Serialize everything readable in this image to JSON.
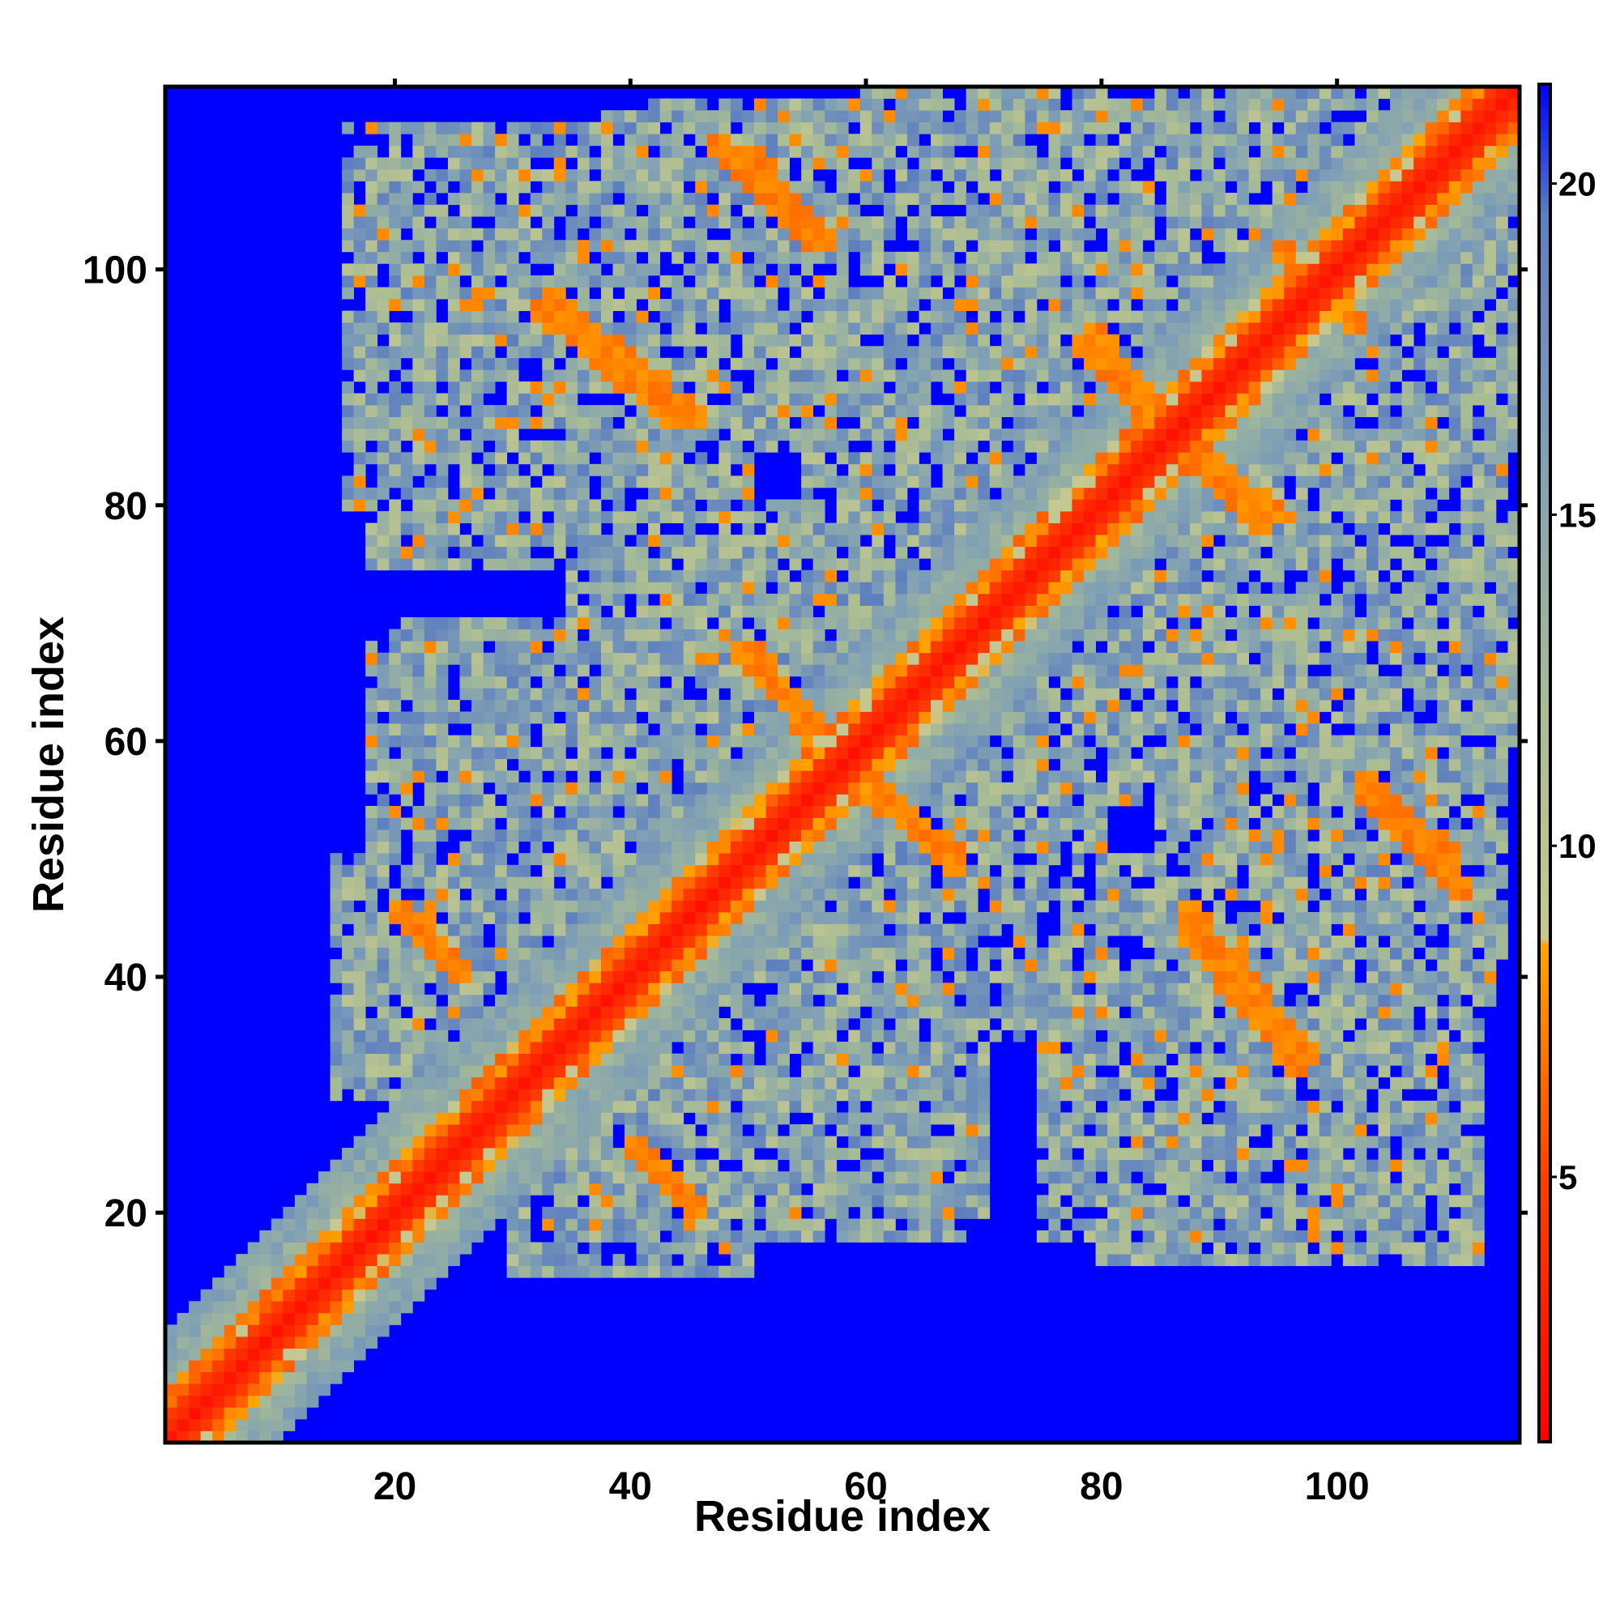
{
  "chart_data": {
    "type": "heatmap",
    "title": "",
    "xlabel": "Residue index",
    "ylabel": "Residue index",
    "n_residues": 115,
    "xlim": [
      0.5,
      115.5
    ],
    "ylim": [
      0.5,
      115.5
    ],
    "xticks": [
      20,
      40,
      60,
      80,
      100
    ],
    "yticks": [
      20,
      40,
      60,
      80,
      100
    ],
    "grid": false,
    "legend": "none",
    "value_description": "pairwise residue distance (colour scale)",
    "colorbar": {
      "range": [
        1,
        21.5
      ],
      "ticks": [
        5,
        10,
        15,
        20
      ],
      "placement": "right",
      "stops": [
        {
          "value": 1,
          "color": "#ff0000"
        },
        {
          "value": 5,
          "color": "#ff4000"
        },
        {
          "value": 8.5,
          "color": "#ffa500"
        },
        {
          "value": 8.6,
          "color": "#c8c890"
        },
        {
          "value": 12,
          "color": "#a8bc94"
        },
        {
          "value": 16,
          "color": "#7f9fb5"
        },
        {
          "value": 19.5,
          "color": "#5e7fbe"
        },
        {
          "value": 20.5,
          "color": "#2a3fe0"
        },
        {
          "value": 21.5,
          "color": "#0000ff"
        }
      ]
    },
    "background_color": "#0000ff",
    "diagonal_band": {
      "width": 2,
      "value": 2
    },
    "anti_diagonal_bands": [
      {
        "x": [
          20,
          26
        ],
        "y": [
          46,
          40
        ],
        "value": 6.5
      },
      {
        "x": [
          40,
          46
        ],
        "y": [
          26,
          20
        ],
        "value": 6.5
      },
      {
        "x": [
          32,
          44
        ],
        "y": [
          97,
          87
        ],
        "value": 6.5
      },
      {
        "x": [
          47,
          56
        ],
        "y": [
          111,
          102
        ],
        "value": 6.5
      },
      {
        "x": [
          50,
          57
        ],
        "y": [
          68,
          60
        ],
        "value": 6.5
      },
      {
        "x": [
          60,
          68
        ],
        "y": [
          56,
          49
        ],
        "value": 6.5
      },
      {
        "x": [
          79,
          86
        ],
        "y": [
          95,
          87
        ],
        "value": 6.5
      },
      {
        "x": [
          86,
          94
        ],
        "y": [
          85,
          78
        ],
        "value": 6.5
      },
      {
        "x": [
          87,
          98
        ],
        "y": [
          46,
          33
        ],
        "value": 6.5
      },
      {
        "x": [
          102,
          110
        ],
        "y": [
          57,
          50
        ],
        "value": 6.5
      },
      {
        "x": [
          95,
          100
        ],
        "y": [
          102,
          96
        ],
        "value": 6.5
      }
    ],
    "contact_regions": [
      {
        "x": [
          15,
          45
        ],
        "y": [
          30,
          50
        ]
      },
      {
        "x": [
          30,
          50
        ],
        "y": [
          15,
          30
        ]
      },
      {
        "x": [
          16,
          50
        ],
        "y": [
          80,
          112
        ]
      },
      {
        "x": [
          38,
          72
        ],
        "y": [
          98,
          113
        ]
      },
      {
        "x": [
          55,
          82
        ],
        "y": [
          72,
          112
        ]
      },
      {
        "x": [
          75,
          115
        ],
        "y": [
          85,
          113
        ]
      },
      {
        "x": [
          100,
          114
        ],
        "y": [
          80,
          92
        ]
      },
      {
        "x": [
          18,
          45
        ],
        "y": [
          50,
          68
        ]
      },
      {
        "x": [
          35,
          55
        ],
        "y": [
          55,
          75
        ]
      },
      {
        "x": [
          55,
          80
        ],
        "y": [
          40,
          58
        ]
      },
      {
        "x": [
          60,
          85
        ],
        "y": [
          58,
          80
        ]
      },
      {
        "x": [
          80,
          115
        ],
        "y": [
          60,
          80
        ]
      },
      {
        "x": [
          85,
          114
        ],
        "y": [
          42,
          60
        ]
      },
      {
        "x": [
          75,
          108
        ],
        "y": [
          18,
          45
        ]
      },
      {
        "x": [
          100,
          112
        ],
        "y": [
          18,
          30
        ]
      },
      {
        "x": [
          40,
          70
        ],
        "y": [
          20,
          45
        ]
      },
      {
        "x": [
          55,
          68
        ],
        "y": [
          20,
          35
        ]
      }
    ]
  }
}
